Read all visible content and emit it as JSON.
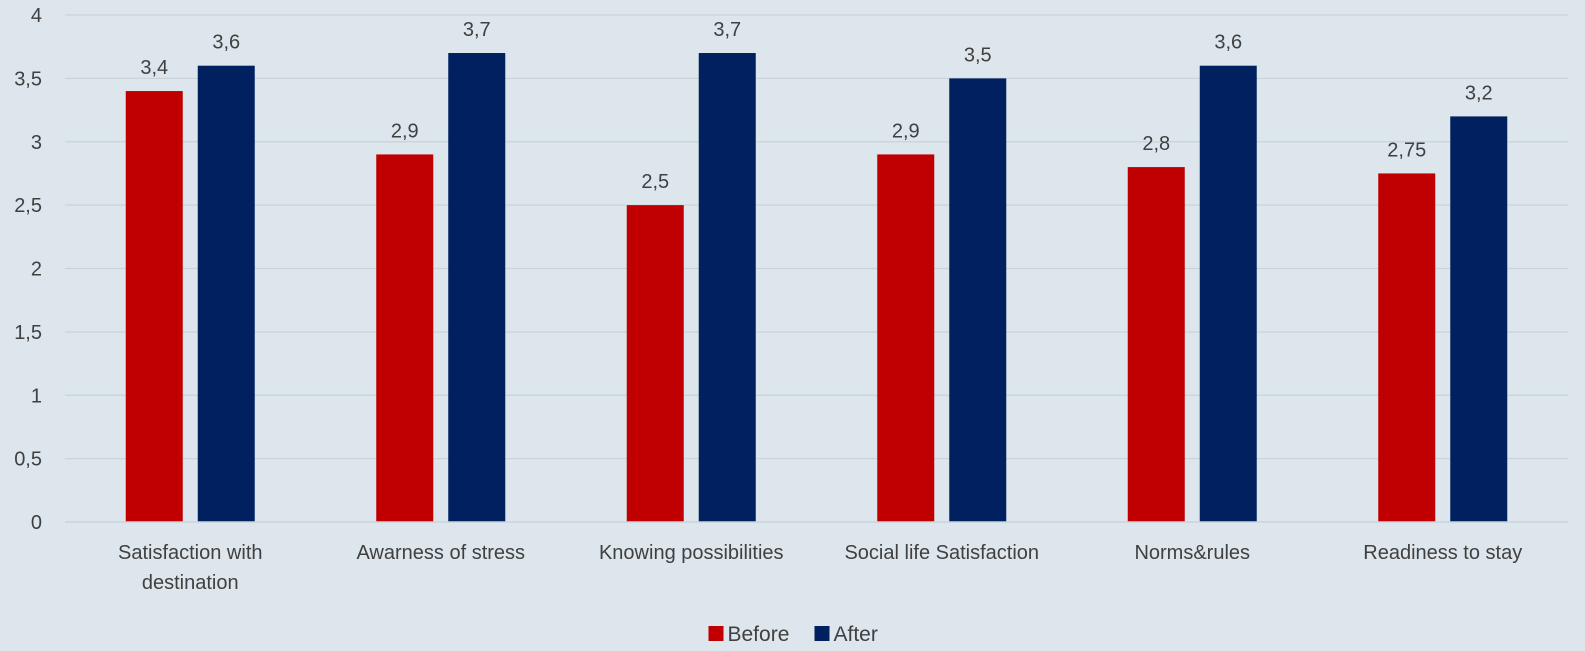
{
  "chart_data": {
    "type": "bar",
    "categories": [
      "Satisfaction with destination",
      "Awarness of stress",
      "Knowing possibilities",
      "Social life Satisfaction",
      "Norms&rules",
      "Readiness to stay"
    ],
    "series": [
      {
        "name": "Before",
        "color": "#c00000",
        "values": [
          3.4,
          2.9,
          2.5,
          2.9,
          2.8,
          2.75
        ],
        "labels": [
          "3,4",
          "2,9",
          "2,5",
          "2,9",
          "2,8",
          "2,75"
        ]
      },
      {
        "name": "After",
        "color": "#002060",
        "values": [
          3.6,
          3.7,
          3.7,
          3.5,
          3.6,
          3.2
        ],
        "labels": [
          "3,6",
          "3,7",
          "3,7",
          "3,5",
          "3,6",
          "3,2"
        ]
      }
    ],
    "y_ticks": [
      "0",
      "0,5",
      "1",
      "1,5",
      "2",
      "2,5",
      "3",
      "3,5",
      "4"
    ],
    "ylim": [
      0,
      4
    ],
    "grid": true,
    "legend_position": "bottom",
    "title": "",
    "xlabel": "",
    "ylabel": ""
  }
}
